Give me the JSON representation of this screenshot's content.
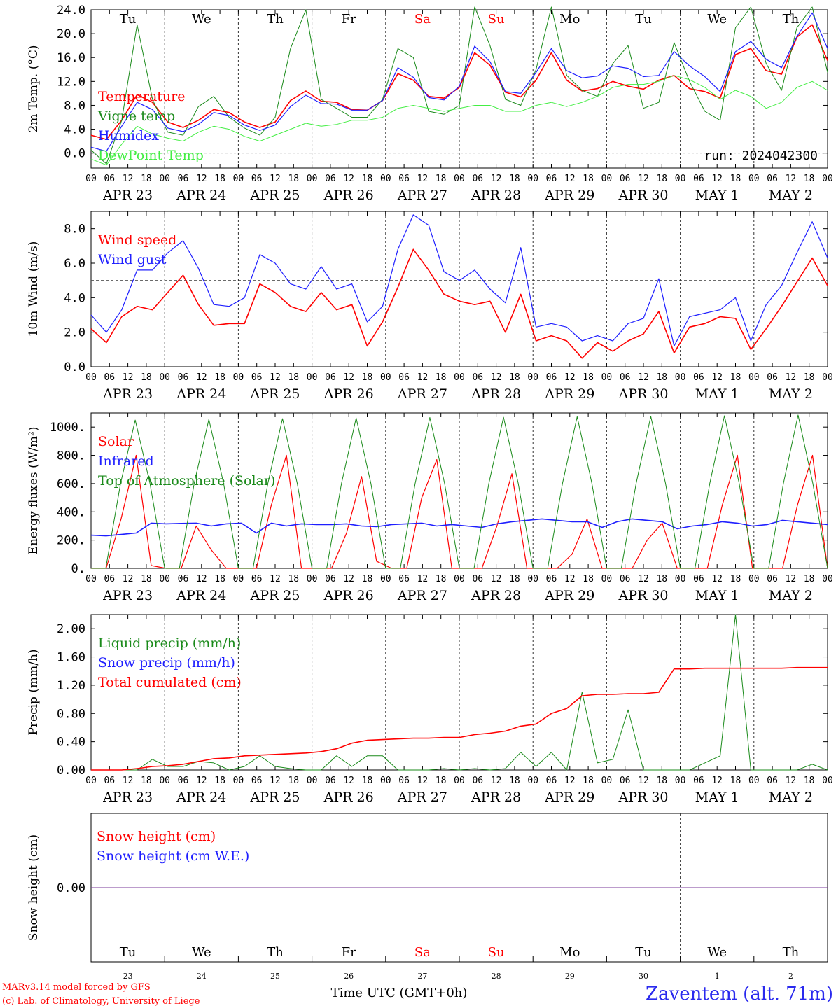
{
  "run_label": "run: 2024042300",
  "time_label": "Time UTC (GMT+0h)",
  "station_label": "Zaventem (alt. 71m)",
  "credit": [
    "MARv3.14 model forced by GFS",
    "(c) Lab. of Climatology, University of Liege"
  ],
  "colors": {
    "red": "#ff0000",
    "green": "#1a8a1a",
    "blue": "#1f1fff",
    "lightgreen": "#44ee44",
    "purple": "#7a3a9a"
  },
  "days": [
    {
      "abbr": "Tu",
      "weekend": false,
      "date": "APR 23",
      "num": "23"
    },
    {
      "abbr": "We",
      "weekend": false,
      "date": "APR 24",
      "num": "24"
    },
    {
      "abbr": "Th",
      "weekend": false,
      "date": "APR 25",
      "num": "25"
    },
    {
      "abbr": "Fr",
      "weekend": false,
      "date": "APR 26",
      "num": "26"
    },
    {
      "abbr": "Sa",
      "weekend": true,
      "date": "APR 27",
      "num": "27"
    },
    {
      "abbr": "Su",
      "weekend": true,
      "date": "APR 28",
      "num": "28"
    },
    {
      "abbr": "Mo",
      "weekend": false,
      "date": "APR 29",
      "num": "29"
    },
    {
      "abbr": "Tu",
      "weekend": false,
      "date": "APR 30",
      "num": "30"
    },
    {
      "abbr": "We",
      "weekend": false,
      "date": "MAY  1",
      "num": "1"
    },
    {
      "abbr": "Th",
      "weekend": false,
      "date": "MAY  2",
      "num": "2"
    }
  ],
  "hour_ticks": [
    "00",
    "06",
    "12",
    "18"
  ],
  "chart_data": [
    {
      "type": "line",
      "ylabel": "2m Temp. (°C)",
      "ylim": [
        -2.5,
        24
      ],
      "yticks": [
        "0.0",
        "4.0",
        "8.0",
        "12.0",
        "16.0",
        "20.0",
        "24.0"
      ],
      "x_start": "2024-04-23 00 UTC",
      "x_step_hours": 6,
      "show_day_names": true,
      "show_run_label": true,
      "series": [
        {
          "name": "Temperature",
          "color": "red",
          "width": 1.6,
          "values": [
            3.0,
            2.3,
            5.5,
            9.8,
            8.5,
            5.2,
            4.3,
            5.5,
            7.3,
            6.8,
            5.2,
            4.3,
            5.2,
            8.8,
            10.4,
            8.7,
            8.5,
            7.3,
            7.2,
            8.8,
            13.3,
            12.2,
            9.5,
            9.2,
            11.0,
            16.8,
            14.7,
            10.2,
            9.4,
            12.2,
            16.8,
            12.2,
            10.4,
            10.8,
            12.0,
            11.2,
            10.7,
            12.2,
            13.0,
            10.8,
            10.3,
            9.2,
            16.5,
            17.5,
            13.8,
            13.2,
            19.4,
            21.5,
            15.5
          ]
        },
        {
          "name": "Vigne temp",
          "color": "green",
          "width": 1,
          "values": [
            0.5,
            -1.8,
            5.5,
            21.5,
            9.0,
            3.5,
            3.0,
            7.8,
            9.5,
            6.0,
            4.2,
            3.0,
            6.0,
            17.5,
            24.0,
            9.0,
            7.5,
            6.0,
            6.0,
            9.0,
            17.5,
            16.0,
            7.0,
            6.5,
            8.0,
            25.5,
            18.0,
            9.0,
            8.0,
            14.0,
            25.5,
            13.0,
            10.5,
            9.5,
            15.0,
            18.0,
            7.5,
            8.5,
            18.5,
            12.0,
            7.0,
            5.5,
            21.0,
            26.0,
            15.0,
            10.5,
            21.0,
            25.0,
            13.5
          ]
        },
        {
          "name": "Humidex",
          "color": "blue",
          "width": 1.2,
          "values": [
            1.0,
            0.3,
            4.5,
            8.5,
            7.3,
            4.2,
            3.6,
            4.8,
            6.8,
            6.3,
            4.7,
            3.8,
            4.7,
            7.8,
            9.7,
            8.3,
            8.2,
            7.2,
            7.2,
            8.8,
            14.3,
            12.7,
            9.3,
            8.9,
            11.2,
            17.9,
            15.3,
            10.3,
            10.0,
            13.5,
            17.5,
            13.8,
            12.6,
            12.9,
            14.6,
            14.2,
            12.8,
            13.0,
            17.0,
            14.6,
            12.8,
            10.3,
            17.0,
            18.7,
            15.7,
            14.3,
            19.5,
            23.5,
            17.5
          ]
        },
        {
          "name": "DewPoint Temp",
          "color": "lightgreen",
          "width": 1,
          "values": [
            -1.0,
            -2.0,
            1.5,
            4.5,
            3.2,
            2.5,
            2.0,
            3.5,
            4.5,
            4.0,
            2.8,
            2.0,
            3.0,
            4.0,
            5.0,
            4.5,
            4.8,
            5.5,
            5.5,
            6.0,
            7.5,
            8.0,
            7.5,
            7.0,
            7.5,
            8.0,
            8.0,
            7.0,
            7.0,
            8.0,
            8.5,
            7.8,
            8.5,
            9.5,
            11.0,
            11.5,
            11.5,
            12.0,
            13.0,
            12.3,
            11.0,
            9.0,
            10.5,
            9.5,
            7.5,
            8.5,
            11.0,
            12.0,
            10.5
          ]
        }
      ]
    },
    {
      "type": "line",
      "ylabel": "10m Wind (m/s)",
      "ylim": [
        0,
        9.0
      ],
      "yticks": [
        "0.0",
        "2.0",
        "4.0",
        "6.0",
        "8.0"
      ],
      "reference_line": 5.0,
      "x_start": "2024-04-23 00 UTC",
      "x_step_hours": 6,
      "series": [
        {
          "name": "Wind speed",
          "color": "red",
          "width": 1.6,
          "values": [
            2.2,
            1.4,
            2.9,
            3.5,
            3.3,
            4.3,
            5.3,
            3.6,
            2.4,
            2.5,
            2.5,
            4.8,
            4.3,
            3.5,
            3.2,
            4.3,
            3.3,
            3.6,
            1.2,
            2.6,
            4.6,
            6.8,
            5.6,
            4.2,
            3.8,
            3.6,
            3.8,
            2.0,
            4.2,
            1.5,
            1.8,
            1.5,
            0.5,
            1.4,
            0.9,
            1.5,
            1.9,
            3.2,
            0.8,
            2.3,
            2.5,
            2.9,
            2.8,
            1.0,
            2.2,
            3.5,
            4.9,
            6.3,
            4.7
          ]
        },
        {
          "name": "Wind gust",
          "color": "blue",
          "width": 1.2,
          "values": [
            3.0,
            2.0,
            3.3,
            5.6,
            5.6,
            6.6,
            7.3,
            5.7,
            3.6,
            3.5,
            4.0,
            6.5,
            6.0,
            4.8,
            4.5,
            5.8,
            4.5,
            4.8,
            2.6,
            3.5,
            6.8,
            8.8,
            8.2,
            5.5,
            5.0,
            5.6,
            4.5,
            3.7,
            6.9,
            2.3,
            2.5,
            2.3,
            1.5,
            1.8,
            1.5,
            2.5,
            2.8,
            5.1,
            1.2,
            2.9,
            3.1,
            3.3,
            4.0,
            1.5,
            3.6,
            4.7,
            6.6,
            8.4,
            6.3
          ]
        }
      ]
    },
    {
      "type": "line",
      "ylabel": "Energy fluxes (W/m²)",
      "ylim": [
        0,
        1100
      ],
      "yticks": [
        "0.",
        "200.",
        "400.",
        "600.",
        "800.",
        "1000."
      ],
      "x_start": "2024-04-23 00 UTC",
      "x_step_hours": 6,
      "series": [
        {
          "name": "Solar",
          "color": "red",
          "width": 1.2,
          "values": [
            0,
            0,
            350,
            800,
            20,
            0,
            0,
            300,
            130,
            0,
            0,
            0,
            450,
            800,
            0,
            0,
            0,
            250,
            650,
            50,
            0,
            0,
            500,
            770,
            0,
            0,
            0,
            300,
            670,
            0,
            0,
            0,
            100,
            350,
            0,
            0,
            0,
            200,
            320,
            0,
            0,
            0,
            450,
            800,
            0,
            0,
            0,
            450,
            800,
            0
          ]
        },
        {
          "name": "Infrared",
          "color": "blue",
          "width": 1.6,
          "values": [
            235,
            230,
            240,
            250,
            320,
            315,
            318,
            320,
            300,
            315,
            320,
            250,
            320,
            300,
            315,
            310,
            310,
            315,
            300,
            295,
            310,
            315,
            320,
            300,
            310,
            300,
            290,
            315,
            330,
            340,
            350,
            340,
            330,
            330,
            290,
            330,
            350,
            340,
            330,
            280,
            300,
            310,
            330,
            320,
            300,
            310,
            340,
            330,
            320,
            310
          ]
        },
        {
          "name": "Top of Atmosphere (Solar)",
          "color": "green",
          "width": 1,
          "values": [
            0,
            0,
            600,
            1050,
            600,
            0,
            0,
            600,
            1055,
            600,
            0,
            0,
            600,
            1060,
            600,
            0,
            0,
            600,
            1065,
            600,
            0,
            0,
            600,
            1068,
            600,
            0,
            0,
            600,
            1070,
            600,
            0,
            0,
            600,
            1073,
            600,
            0,
            0,
            600,
            1076,
            600,
            0,
            0,
            600,
            1080,
            600,
            0,
            0,
            600,
            1085,
            600,
            0
          ]
        }
      ]
    },
    {
      "type": "line",
      "ylabel": "Precip (mm/h)",
      "ylim": [
        0,
        2.2
      ],
      "yticks": [
        "0.00",
        "0.40",
        "0.80",
        "1.20",
        "1.60",
        "2.00"
      ],
      "x_start": "2024-04-23 00 UTC",
      "x_step_hours": 6,
      "series": [
        {
          "name": "Liquid precip (mm/h)",
          "color": "green",
          "width": 1,
          "values": [
            0,
            0,
            0,
            0,
            0.15,
            0.05,
            0.05,
            0.12,
            0.1,
            0,
            0.05,
            0.2,
            0.05,
            0.02,
            0,
            0,
            0.2,
            0.05,
            0.2,
            0.2,
            0,
            0,
            0,
            0.02,
            0,
            0.02,
            0,
            0.02,
            0.25,
            0.05,
            0.25,
            0,
            1.1,
            0.1,
            0.15,
            0.85,
            0,
            0,
            0,
            0,
            0.1,
            0.2,
            2.2,
            0,
            0,
            0,
            0,
            0.08,
            0
          ]
        },
        {
          "name": "Snow precip (mm/h)",
          "color": "blue",
          "width": 1,
          "values": []
        },
        {
          "name": "Total cumulated (cm)",
          "color": "red",
          "width": 1.6,
          "values": [
            0,
            0,
            0,
            0.02,
            0.05,
            0.06,
            0.08,
            0.12,
            0.16,
            0.17,
            0.2,
            0.21,
            0.22,
            0.23,
            0.24,
            0.26,
            0.3,
            0.38,
            0.42,
            0.43,
            0.44,
            0.45,
            0.45,
            0.46,
            0.46,
            0.5,
            0.52,
            0.55,
            0.62,
            0.65,
            0.8,
            0.87,
            1.05,
            1.07,
            1.07,
            1.08,
            1.08,
            1.1,
            1.43,
            1.43,
            1.44,
            1.44,
            1.44,
            1.44,
            1.44,
            1.44,
            1.45,
            1.45,
            1.45
          ]
        }
      ]
    },
    {
      "type": "line",
      "ylabel": "Snow height (cm)",
      "ylim": [
        -1,
        1
      ],
      "yticks": [
        "0.00"
      ],
      "x_start": "2024-04-23 00 UTC",
      "x_step_hours": 6,
      "series": [
        {
          "name": "Snow height (cm)",
          "color": "red",
          "width": 1,
          "values": [
            0,
            0
          ]
        },
        {
          "name": "Snow height (cm W.E.)",
          "color": "blue",
          "width": 1,
          "values": [
            0,
            0
          ]
        }
      ]
    }
  ]
}
